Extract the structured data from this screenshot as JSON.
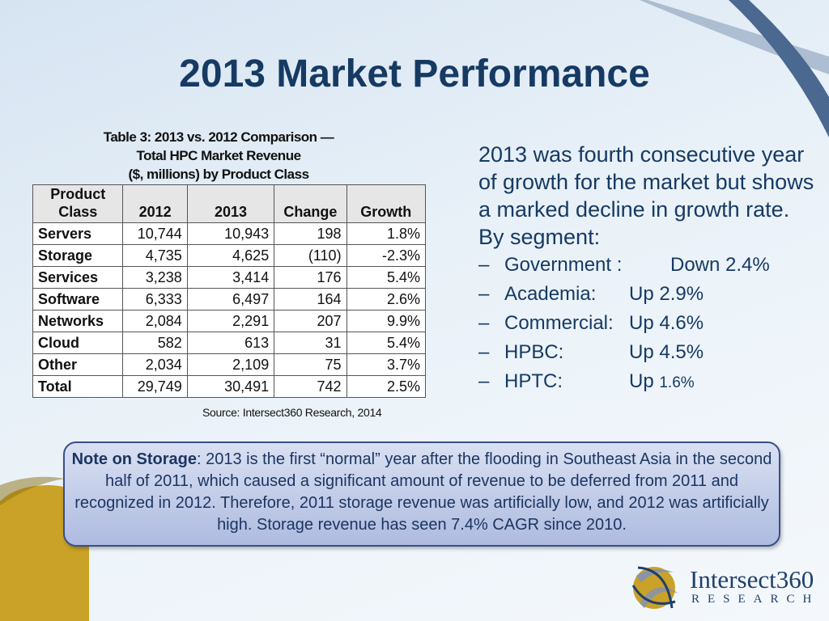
{
  "slide": {
    "title": "2013 Market Performance"
  },
  "table": {
    "caption_lines": [
      "Table 3: 2013 vs. 2012 Comparison —",
      "Total HPC Market Revenue",
      "($, millions) by Product Class"
    ],
    "header_class_line1": "Product",
    "header_class_line2": "Class",
    "headers": [
      "2012",
      "2013",
      "Change",
      "Growth"
    ],
    "rows": [
      {
        "class": "Servers",
        "y2012": "10,744",
        "y2013": "10,943",
        "change": "198",
        "growth": "1.8%"
      },
      {
        "class": "Storage",
        "y2012": "4,735",
        "y2013": "4,625",
        "change": "(110)",
        "growth": "-2.3%"
      },
      {
        "class": "Services",
        "y2012": "3,238",
        "y2013": "3,414",
        "change": "176",
        "growth": "5.4%"
      },
      {
        "class": "Software",
        "y2012": "6,333",
        "y2013": "6,497",
        "change": "164",
        "growth": "2.6%"
      },
      {
        "class": "Networks",
        "y2012": "2,084",
        "y2013": "2,291",
        "change": "207",
        "growth": "9.9%"
      },
      {
        "class": "Cloud",
        "y2012": "582",
        "y2013": "613",
        "change": "31",
        "growth": "5.4%"
      },
      {
        "class": "Other",
        "y2012": "2,034",
        "y2013": "2,109",
        "change": "75",
        "growth": "3.7%"
      },
      {
        "class": "Total",
        "y2012": "29,749",
        "y2013": "30,491",
        "change": "742",
        "growth": "2.5%"
      }
    ],
    "source": "Source: Intersect360 Research, 2014"
  },
  "summary": {
    "text": "2013 was fourth consecutive year of growth for the market but shows a marked decline in growth rate. By segment:",
    "dash": "–",
    "segments": [
      {
        "name": "Government :",
        "value": "Down 2.4%"
      },
      {
        "name": "Academia:",
        "value": "Up 2.9%"
      },
      {
        "name": "Commercial:",
        "value": "Up 4.6%"
      },
      {
        "name": "HPBC:",
        "value": "Up 4.5%"
      },
      {
        "name": "HPTC:",
        "value_prefix": "Up ",
        "value_small": "1.6%"
      }
    ]
  },
  "note": {
    "label": "Note on Storage",
    "text": ": 2013 is the first “normal” year after the flooding in Southeast Asia in the second half of  2011, which caused a significant amount of revenue to be deferred from 2011 and recognized in 2012. Therefore, 2011 storage revenue was artificially low, and 2012 was artificially high. Storage revenue has seen 7.4% CAGR since 2010."
  },
  "logo": {
    "name": "Intersect360",
    "sub": "RESEARCH",
    "colors": {
      "navy": "#1f3f6c",
      "gold": "#c9a227",
      "silver": "#8a94a6"
    }
  },
  "colors": {
    "title": "#163a63",
    "note_border": "#3a4f86",
    "decor_gold": "#c9a227",
    "decor_steel": "#4a6890"
  }
}
